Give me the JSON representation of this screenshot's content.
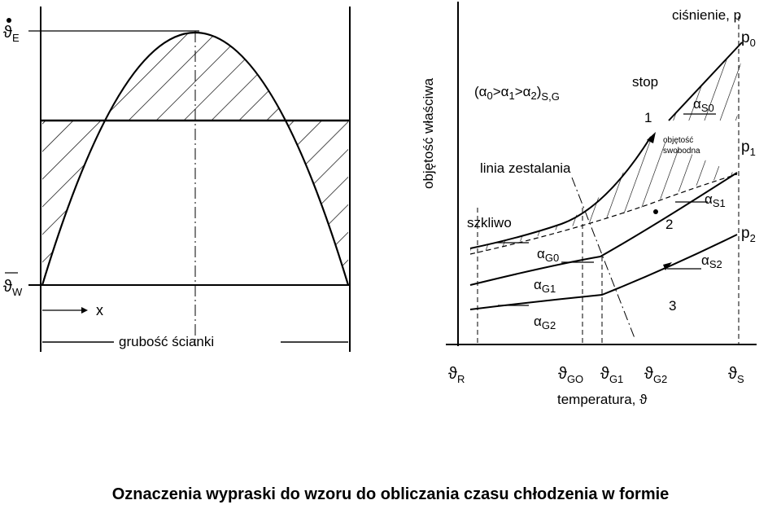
{
  "left_diagram": {
    "theta_E": {
      "sym": "ϑ",
      "sub": "E"
    },
    "theta_W": {
      "sym": "ϑ",
      "sub": "W"
    },
    "x_label": "x",
    "wall_label": "grubość ścianki"
  },
  "right_diagram": {
    "y_axis_label": "objętość właściwa",
    "x_axis_label": "temperatura, ϑ",
    "pressure_label": "ciśnienie, p",
    "alpha_relation": {
      "open": "(",
      "a0": "α",
      "s0": "0",
      "gt1": ">",
      "a1": "α",
      "s1": "1",
      "gt2": ">",
      "a2": "α",
      "s2": "2",
      "close": ")",
      "tail": "S,G"
    },
    "melt_label": "stop",
    "free_volume_line1": "objętość",
    "free_volume_line2": "swobodna",
    "solidification_label": "linia zestalania",
    "glass_label": "szkliwo",
    "curve_numbers": [
      "1",
      "2",
      "3"
    ],
    "pressures": [
      {
        "sym": "p",
        "sub": "0"
      },
      {
        "sym": "p",
        "sub": "1"
      },
      {
        "sym": "p",
        "sub": "2"
      }
    ],
    "alpha_S": [
      {
        "sym": "α",
        "sub": "S0"
      },
      {
        "sym": "α",
        "sub": "S1"
      },
      {
        "sym": "α",
        "sub": "S2"
      }
    ],
    "alpha_G": [
      {
        "sym": "α",
        "sub": "G0"
      },
      {
        "sym": "α",
        "sub": "G1"
      },
      {
        "sym": "α",
        "sub": "G2"
      }
    ],
    "x_ticks": [
      {
        "sym": "ϑ",
        "sub": "R"
      },
      {
        "sym": "ϑ",
        "sub": "GO"
      },
      {
        "sym": "ϑ",
        "sub": "G1"
      },
      {
        "sym": "ϑ",
        "sub": "G2"
      },
      {
        "sym": "ϑ",
        "sub": "S"
      }
    ]
  },
  "caption": "Oznaczenia wypraski do wzoru do obliczania czasu chłodzenia w formie"
}
